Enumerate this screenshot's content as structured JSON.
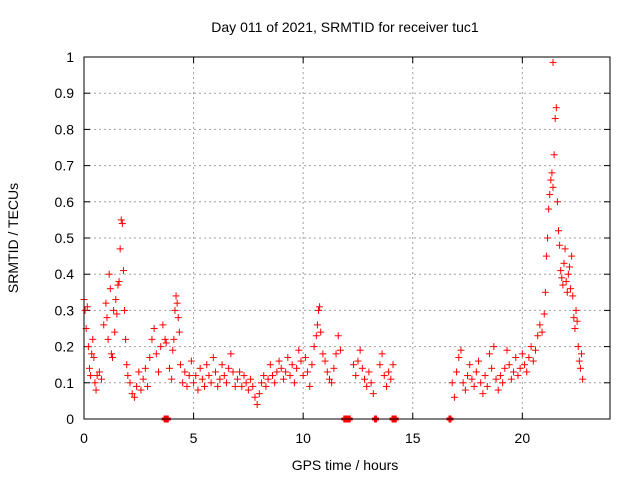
{
  "chart_data": {
    "type": "scatter",
    "title": "Day 011 of 2021, SRMTID for receiver tuc1",
    "xlabel": "GPS time / hours",
    "ylabel": "SRMTID / TECUs",
    "xlim": [
      0,
      24
    ],
    "ylim": [
      0,
      1
    ],
    "xticks": [
      0,
      5,
      10,
      15,
      20
    ],
    "xtick_labels": [
      "0",
      "5",
      "10",
      "15",
      "20"
    ],
    "yticks": [
      0,
      0.1,
      0.2,
      0.3,
      0.4,
      0.5,
      0.6,
      0.7,
      0.8,
      0.9,
      1
    ],
    "ytick_labels": [
      "0",
      "0.1",
      "0.2",
      "0.3",
      "0.4",
      "0.5",
      "0.6",
      "0.7",
      "0.8",
      "0.9",
      "1"
    ],
    "grid": true,
    "marker": "+",
    "color": "#ff0000",
    "zero_markers": [
      3.7,
      3.8,
      11.9,
      12.0,
      12.1,
      13.3,
      14.1,
      14.2,
      16.7
    ],
    "series": [
      {
        "name": "SRMTID",
        "points": [
          [
            0.0,
            0.33
          ],
          [
            0.05,
            0.3
          ],
          [
            0.1,
            0.25
          ],
          [
            0.15,
            0.31
          ],
          [
            0.2,
            0.2
          ],
          [
            0.25,
            0.14
          ],
          [
            0.3,
            0.12
          ],
          [
            0.35,
            0.18
          ],
          [
            0.4,
            0.22
          ],
          [
            0.45,
            0.17
          ],
          [
            0.5,
            0.1
          ],
          [
            0.55,
            0.08
          ],
          [
            0.6,
            0.12
          ],
          [
            0.7,
            0.13
          ],
          [
            0.8,
            0.11
          ],
          [
            0.9,
            0.26
          ],
          [
            1.0,
            0.32
          ],
          [
            1.05,
            0.28
          ],
          [
            1.1,
            0.22
          ],
          [
            1.15,
            0.4
          ],
          [
            1.2,
            0.36
          ],
          [
            1.25,
            0.18
          ],
          [
            1.3,
            0.17
          ],
          [
            1.35,
            0.3
          ],
          [
            1.4,
            0.24
          ],
          [
            1.45,
            0.33
          ],
          [
            1.5,
            0.29
          ],
          [
            1.55,
            0.37
          ],
          [
            1.6,
            0.38
          ],
          [
            1.65,
            0.47
          ],
          [
            1.7,
            0.55
          ],
          [
            1.75,
            0.54
          ],
          [
            1.8,
            0.41
          ],
          [
            1.85,
            0.3
          ],
          [
            1.9,
            0.22
          ],
          [
            1.95,
            0.15
          ],
          [
            2.0,
            0.12
          ],
          [
            2.1,
            0.1
          ],
          [
            2.2,
            0.07
          ],
          [
            2.3,
            0.06
          ],
          [
            2.4,
            0.09
          ],
          [
            2.5,
            0.13
          ],
          [
            2.6,
            0.08
          ],
          [
            2.7,
            0.11
          ],
          [
            2.8,
            0.14
          ],
          [
            2.9,
            0.09
          ],
          [
            3.0,
            0.17
          ],
          [
            3.1,
            0.22
          ],
          [
            3.2,
            0.25
          ],
          [
            3.3,
            0.18
          ],
          [
            3.4,
            0.13
          ],
          [
            3.5,
            0.2
          ],
          [
            3.6,
            0.26
          ],
          [
            3.7,
            0.22
          ],
          [
            3.75,
            0.21
          ],
          [
            3.9,
            0.14
          ],
          [
            4.0,
            0.11
          ],
          [
            4.05,
            0.19
          ],
          [
            4.1,
            0.22
          ],
          [
            4.15,
            0.3
          ],
          [
            4.2,
            0.34
          ],
          [
            4.25,
            0.32
          ],
          [
            4.3,
            0.28
          ],
          [
            4.35,
            0.24
          ],
          [
            4.4,
            0.15
          ],
          [
            4.5,
            0.1
          ],
          [
            4.6,
            0.13
          ],
          [
            4.7,
            0.09
          ],
          [
            4.8,
            0.12
          ],
          [
            4.9,
            0.16
          ],
          [
            5.0,
            0.1
          ],
          [
            5.1,
            0.12
          ],
          [
            5.2,
            0.08
          ],
          [
            5.3,
            0.14
          ],
          [
            5.4,
            0.11
          ],
          [
            5.5,
            0.09
          ],
          [
            5.6,
            0.15
          ],
          [
            5.7,
            0.12
          ],
          [
            5.8,
            0.1
          ],
          [
            5.9,
            0.17
          ],
          [
            6.0,
            0.13
          ],
          [
            6.1,
            0.09
          ],
          [
            6.2,
            0.11
          ],
          [
            6.3,
            0.15
          ],
          [
            6.4,
            0.12
          ],
          [
            6.5,
            0.1
          ],
          [
            6.6,
            0.14
          ],
          [
            6.7,
            0.18
          ],
          [
            6.8,
            0.13
          ],
          [
            6.9,
            0.09
          ],
          [
            7.0,
            0.11
          ],
          [
            7.1,
            0.13
          ],
          [
            7.2,
            0.09
          ],
          [
            7.3,
            0.12
          ],
          [
            7.4,
            0.1
          ],
          [
            7.5,
            0.08
          ],
          [
            7.6,
            0.11
          ],
          [
            7.7,
            0.09
          ],
          [
            7.8,
            0.06
          ],
          [
            7.9,
            0.04
          ],
          [
            8.0,
            0.07
          ],
          [
            8.1,
            0.1
          ],
          [
            8.2,
            0.12
          ],
          [
            8.3,
            0.09
          ],
          [
            8.4,
            0.11
          ],
          [
            8.5,
            0.15
          ],
          [
            8.6,
            0.12
          ],
          [
            8.7,
            0.1
          ],
          [
            8.8,
            0.13
          ],
          [
            8.9,
            0.16
          ],
          [
            9.0,
            0.14
          ],
          [
            9.1,
            0.11
          ],
          [
            9.2,
            0.13
          ],
          [
            9.3,
            0.17
          ],
          [
            9.4,
            0.12
          ],
          [
            9.5,
            0.15
          ],
          [
            9.6,
            0.1
          ],
          [
            9.7,
            0.14
          ],
          [
            9.8,
            0.19
          ],
          [
            9.9,
            0.16
          ],
          [
            10.0,
            0.12
          ],
          [
            10.1,
            0.17
          ],
          [
            10.2,
            0.13
          ],
          [
            10.3,
            0.09
          ],
          [
            10.4,
            0.15
          ],
          [
            10.5,
            0.2
          ],
          [
            10.6,
            0.23
          ],
          [
            10.65,
            0.26
          ],
          [
            10.7,
            0.3
          ],
          [
            10.75,
            0.31
          ],
          [
            10.8,
            0.24
          ],
          [
            10.9,
            0.18
          ],
          [
            11.0,
            0.16
          ],
          [
            11.1,
            0.13
          ],
          [
            11.2,
            0.11
          ],
          [
            11.3,
            0.1
          ],
          [
            11.4,
            0.14
          ],
          [
            11.5,
            0.18
          ],
          [
            11.6,
            0.23
          ],
          [
            11.7,
            0.19
          ],
          [
            12.3,
            0.15
          ],
          [
            12.4,
            0.12
          ],
          [
            12.5,
            0.16
          ],
          [
            12.6,
            0.19
          ],
          [
            12.7,
            0.14
          ],
          [
            12.8,
            0.11
          ],
          [
            12.9,
            0.09
          ],
          [
            13.0,
            0.13
          ],
          [
            13.1,
            0.1
          ],
          [
            13.2,
            0.07
          ],
          [
            13.5,
            0.15
          ],
          [
            13.6,
            0.18
          ],
          [
            13.7,
            0.12
          ],
          [
            13.8,
            0.09
          ],
          [
            13.9,
            0.13
          ],
          [
            14.0,
            0.11
          ],
          [
            14.1,
            0.15
          ],
          [
            16.8,
            0.1
          ],
          [
            16.9,
            0.06
          ],
          [
            17.0,
            0.13
          ],
          [
            17.1,
            0.17
          ],
          [
            17.2,
            0.19
          ],
          [
            17.3,
            0.1
          ],
          [
            17.4,
            0.08
          ],
          [
            17.5,
            0.12
          ],
          [
            17.6,
            0.15
          ],
          [
            17.7,
            0.11
          ],
          [
            17.8,
            0.09
          ],
          [
            17.9,
            0.13
          ],
          [
            18.0,
            0.16
          ],
          [
            18.1,
            0.1
          ],
          [
            18.2,
            0.07
          ],
          [
            18.3,
            0.12
          ],
          [
            18.4,
            0.09
          ],
          [
            18.5,
            0.18
          ],
          [
            18.6,
            0.14
          ],
          [
            18.7,
            0.2
          ],
          [
            18.8,
            0.11
          ],
          [
            18.9,
            0.08
          ],
          [
            19.0,
            0.12
          ],
          [
            19.1,
            0.1
          ],
          [
            19.2,
            0.14
          ],
          [
            19.3,
            0.19
          ],
          [
            19.4,
            0.15
          ],
          [
            19.5,
            0.11
          ],
          [
            19.6,
            0.13
          ],
          [
            19.7,
            0.17
          ],
          [
            19.8,
            0.12
          ],
          [
            19.9,
            0.14
          ],
          [
            20.0,
            0.18
          ],
          [
            20.1,
            0.15
          ],
          [
            20.2,
            0.13
          ],
          [
            20.3,
            0.17
          ],
          [
            20.4,
            0.2
          ],
          [
            20.5,
            0.16
          ],
          [
            20.6,
            0.19
          ],
          [
            20.7,
            0.23
          ],
          [
            20.8,
            0.26
          ],
          [
            20.9,
            0.24
          ],
          [
            21.0,
            0.29
          ],
          [
            21.05,
            0.35
          ],
          [
            21.1,
            0.45
          ],
          [
            21.15,
            0.5
          ],
          [
            21.2,
            0.58
          ],
          [
            21.25,
            0.62
          ],
          [
            21.3,
            0.66
          ],
          [
            21.35,
            0.68
          ],
          [
            21.4,
            0.64
          ],
          [
            21.45,
            0.73
          ],
          [
            21.5,
            0.83
          ],
          [
            21.55,
            0.86
          ],
          [
            21.6,
            0.6
          ],
          [
            21.65,
            0.52
          ],
          [
            21.7,
            0.48
          ],
          [
            21.75,
            0.41
          ],
          [
            21.8,
            0.39
          ],
          [
            21.85,
            0.37
          ],
          [
            21.9,
            0.43
          ],
          [
            21.95,
            0.47
          ],
          [
            22.0,
            0.38
          ],
          [
            22.05,
            0.35
          ],
          [
            22.1,
            0.4
          ],
          [
            22.15,
            0.42
          ],
          [
            22.2,
            0.36
          ],
          [
            22.25,
            0.45
          ],
          [
            22.3,
            0.34
          ],
          [
            22.35,
            0.28
          ],
          [
            22.4,
            0.25
          ],
          [
            22.45,
            0.3
          ],
          [
            22.5,
            0.27
          ],
          [
            22.55,
            0.2
          ],
          [
            22.6,
            0.16
          ],
          [
            22.65,
            0.14
          ],
          [
            22.7,
            0.18
          ],
          [
            22.75,
            0.11
          ],
          [
            21.4,
            0.985
          ]
        ]
      }
    ]
  }
}
